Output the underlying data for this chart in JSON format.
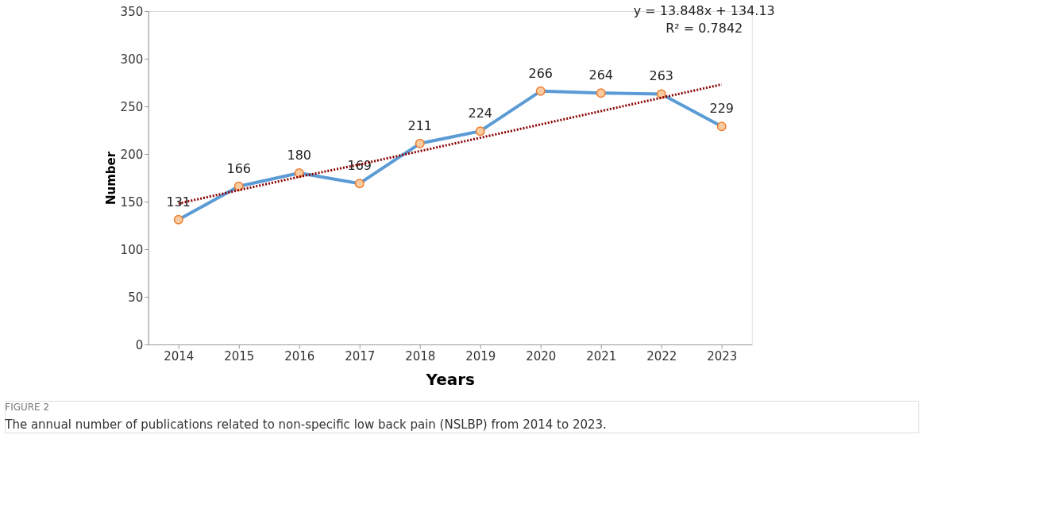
{
  "chart_data": {
    "type": "line",
    "xlabel": "Years",
    "ylabel": "Number",
    "categories": [
      "2014",
      "2015",
      "2016",
      "2017",
      "2018",
      "2019",
      "2020",
      "2021",
      "2022",
      "2023"
    ],
    "series": [
      {
        "color": "#5b9bd5",
        "line_style": "solid",
        "values": [
          131,
          166,
          180,
          169,
          211,
          224,
          266,
          264,
          263,
          229
        ],
        "value_labels": [
          "131",
          "166",
          "180",
          "169",
          "211",
          "224",
          "266",
          "264",
          "263",
          "229"
        ]
      },
      {
        "type": "line",
        "color": "#8b0000",
        "line_style": "dotted",
        "marker": "none",
        "values": [
          148,
          162,
          176,
          189,
          203,
          217,
          231,
          245,
          259,
          273
        ]
      }
    ],
    "ylim": [
      0,
      350
    ],
    "yticks": [
      0,
      50,
      100,
      150,
      200,
      250,
      300,
      350
    ],
    "grid": false,
    "marker": "circle",
    "annotations": [
      "y = 13.848x + 134.13",
      "R² = 0.7842",
      "FIGURE 2",
      "The annual number of publications related to non-specific low back pain (NSLBP) from 2014 to 2023."
    ]
  }
}
